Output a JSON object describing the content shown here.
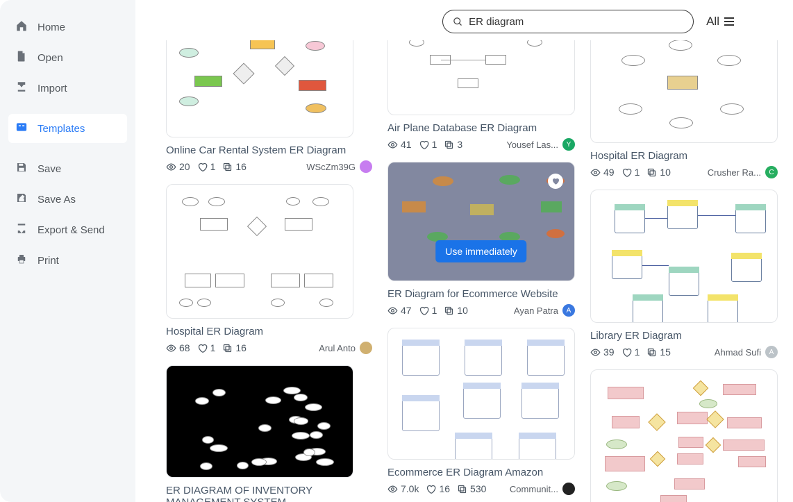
{
  "sidebar": {
    "items": [
      {
        "label": "Home",
        "name": "home",
        "icon": "home"
      },
      {
        "label": "Open",
        "name": "open",
        "icon": "file"
      },
      {
        "label": "Import",
        "name": "import",
        "icon": "download"
      },
      {
        "label": "Templates",
        "name": "templates",
        "icon": "template",
        "active": true
      },
      {
        "label": "Save",
        "name": "save",
        "icon": "save"
      },
      {
        "label": "Save As",
        "name": "save-as",
        "icon": "save-as"
      },
      {
        "label": "Export & Send",
        "name": "export",
        "icon": "export"
      },
      {
        "label": "Print",
        "name": "print",
        "icon": "print"
      }
    ]
  },
  "search": {
    "value": "ER diagram"
  },
  "filter": {
    "label": "All"
  },
  "hoverButton": "Use immediately",
  "colors": {
    "accent": "#2b7cf6"
  },
  "cards": [
    {
      "title": "Online Car Rental System ER Diagram",
      "views": "20",
      "likes": "1",
      "copies": "16",
      "author": "WScZm39G",
      "avatarColor": "#c77df0",
      "thumbHeight": 160,
      "thumbStyle": "er-colored"
    },
    {
      "title": "Air Plane Database ER Diagram",
      "views": "41",
      "likes": "1",
      "copies": "3",
      "author": "Yousef Las...",
      "avatarColor": "#1aa864",
      "avatarInitial": "Y",
      "thumbHeight": 128,
      "thumbStyle": "er-light"
    },
    {
      "title": "Hospital ER Diagram",
      "views": "49",
      "likes": "1",
      "copies": "10",
      "author": "Crusher Ra...",
      "avatarColor": "#27ae60",
      "avatarInitial": "C",
      "thumbHeight": 168,
      "thumbStyle": "er-star"
    },
    {
      "title": "Hospital ER Diagram",
      "views": "68",
      "likes": "1",
      "copies": "16",
      "author": "Arul Anto",
      "avatarColor": "#d0b070",
      "thumbHeight": 194,
      "thumbStyle": "er-tree"
    },
    {
      "title": "ER Diagram for Ecommerce Website",
      "views": "47",
      "likes": "1",
      "copies": "10",
      "author": "Ayan Patra",
      "avatarColor": "#3a78e0",
      "avatarInitial": "A",
      "thumbHeight": 172,
      "thumbStyle": "er-dark",
      "hover": true
    },
    {
      "title": "Library ER Diagram",
      "views": "39",
      "likes": "1",
      "copies": "15",
      "author": "Ahmad Sufi",
      "avatarColor": "#bcc3c8",
      "avatarInitial": "A",
      "thumbHeight": 192,
      "thumbStyle": "er-db"
    },
    {
      "title": "ER DIAGRAM OF INVENTORY MANAGEMENT SYSTEM",
      "views": "",
      "likes": "",
      "copies": "",
      "author": "",
      "thumbHeight": 162,
      "thumbStyle": "er-black"
    },
    {
      "title": "Ecommerce ER Diagram Amazon",
      "views": "7.0k",
      "likes": "16",
      "copies": "530",
      "author": "Communit...",
      "avatarColor": "#222",
      "thumbHeight": 190,
      "thumbStyle": "er-tables"
    },
    {
      "title": "",
      "views": "",
      "likes": "",
      "copies": "",
      "author": "",
      "thumbHeight": 200,
      "thumbStyle": "er-pink"
    }
  ]
}
